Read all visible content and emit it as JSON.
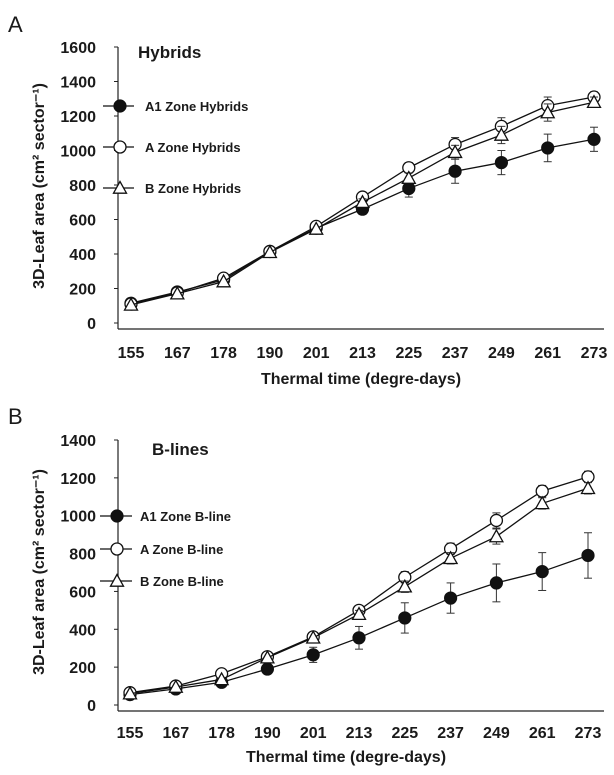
{
  "chart_data": [
    {
      "panel": "A",
      "type": "line",
      "title": "Hybrids",
      "xlabel": "Thermal time (degre-days)",
      "ylabel": "3D-Leaf area (cm² sector⁻¹)",
      "categories": [
        "155",
        "167",
        "178",
        "190",
        "201",
        "213",
        "225",
        "237",
        "249",
        "261",
        "273"
      ],
      "ylim": [
        0,
        1600
      ],
      "yticks": [
        0,
        200,
        400,
        600,
        800,
        1000,
        1200,
        1400,
        1600
      ],
      "grid": false,
      "legend_position": "left",
      "series": [
        {
          "name": "A1 Zone Hybrids",
          "marker": "filled-circle",
          "values": [
            115,
            180,
            250,
            415,
            550,
            660,
            780,
            880,
            930,
            1015,
            1065
          ],
          "errors": [
            0,
            0,
            0,
            0,
            0,
            30,
            50,
            70,
            70,
            80,
            70
          ]
        },
        {
          "name": "A Zone Hybrids",
          "marker": "open-circle",
          "values": [
            110,
            175,
            260,
            415,
            560,
            730,
            900,
            1035,
            1140,
            1260,
            1310
          ],
          "errors": [
            0,
            0,
            0,
            0,
            0,
            20,
            30,
            40,
            50,
            50,
            30
          ]
        },
        {
          "name": "B Zone Hybrids",
          "marker": "open-triangle",
          "values": [
            105,
            170,
            240,
            410,
            545,
            700,
            840,
            990,
            1090,
            1220,
            1280
          ],
          "errors": [
            0,
            0,
            0,
            0,
            0,
            20,
            30,
            40,
            50,
            50,
            30
          ]
        }
      ]
    },
    {
      "panel": "B",
      "type": "line",
      "title": "B-lines",
      "xlabel": "Thermal time (degre-days)",
      "ylabel": "3D-Leaf area (cm² sector⁻¹)",
      "categories": [
        "155",
        "167",
        "178",
        "190",
        "201",
        "213",
        "225",
        "237",
        "249",
        "261",
        "273"
      ],
      "ylim": [
        0,
        1400
      ],
      "yticks": [
        0,
        200,
        400,
        600,
        800,
        1000,
        1200,
        1400
      ],
      "grid": false,
      "legend_position": "left",
      "series": [
        {
          "name": "A1 Zone B-line",
          "marker": "filled-circle",
          "values": [
            55,
            85,
            120,
            190,
            265,
            355,
            460,
            565,
            645,
            705,
            790
          ],
          "errors": [
            0,
            0,
            0,
            25,
            40,
            60,
            80,
            80,
            100,
            100,
            120
          ]
        },
        {
          "name": "A Zone B-line",
          "marker": "open-circle",
          "values": [
            65,
            100,
            165,
            255,
            360,
            500,
            675,
            825,
            975,
            1130,
            1205
          ],
          "errors": [
            0,
            0,
            0,
            0,
            0,
            20,
            30,
            30,
            40,
            30,
            30
          ]
        },
        {
          "name": "B Zone B-line",
          "marker": "open-triangle",
          "values": [
            60,
            95,
            135,
            250,
            355,
            480,
            625,
            775,
            890,
            1065,
            1145
          ],
          "errors": [
            0,
            0,
            0,
            0,
            0,
            20,
            30,
            30,
            40,
            30,
            30
          ]
        }
      ]
    }
  ]
}
